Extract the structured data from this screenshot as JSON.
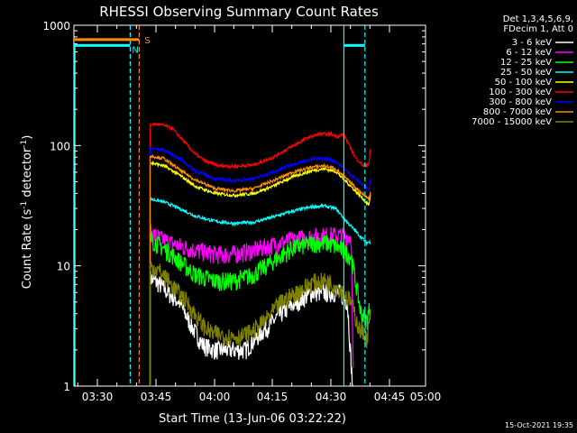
{
  "chart_data": {
    "type": "line",
    "title": "RHESSI Observing Summary Count Rates",
    "xlabel": "Start Time (13-Jun-06 03:22:22)",
    "ylabel_main": "Count Rate (s",
    "ylabel_sup1": "-1",
    "ylabel_mid": " detector",
    "ylabel_sup2": "-1",
    "ylabel_end": ")",
    "footer": "15-Oct-2021 19:35",
    "y_scale": "log",
    "ylim": [
      1,
      1000
    ],
    "xlim_minutes": [
      22.37,
      98.5
    ],
    "x_ticks": [
      {
        "label": "03:30",
        "m": 30
      },
      {
        "label": "03:45",
        "m": 45
      },
      {
        "label": "04:00",
        "m": 60
      },
      {
        "label": "04:15",
        "m": 75
      },
      {
        "label": "04:30",
        "m": 90
      },
      {
        "label": "04:45",
        "m": 105
      },
      {
        "label": "05:00",
        "m": 120
      }
    ],
    "y_tick_labels": [
      {
        "label": "1",
        "v": 1
      },
      {
        "label": "10",
        "v": 10
      },
      {
        "label": "100",
        "v": 100
      },
      {
        "label": "1000",
        "v": 1000
      }
    ],
    "legend_header": [
      "Det 1,3,4,5,6,9,",
      "FDecim 1, Att 0"
    ],
    "flags": {
      "S_label": "S",
      "N_label": "N"
    },
    "series": [
      {
        "name": "3 - 6 keV",
        "color": "#ffffff",
        "points": [
          [
            43.5,
            8
          ],
          [
            46,
            7
          ],
          [
            48,
            6
          ],
          [
            51,
            5
          ],
          [
            54,
            3.2
          ],
          [
            57,
            2.2
          ],
          [
            60,
            2
          ],
          [
            64,
            2
          ],
          [
            68,
            2
          ],
          [
            70,
            2.4
          ],
          [
            73,
            3
          ],
          [
            77,
            4
          ],
          [
            81,
            5
          ],
          [
            85,
            6
          ],
          [
            89,
            6
          ],
          [
            92,
            6
          ],
          [
            94,
            5
          ],
          [
            95.5,
            0.8
          ]
        ]
      },
      {
        "name": "6 - 12 keV",
        "color": "#ff00ff",
        "points": [
          [
            43.5,
            19
          ],
          [
            46,
            17
          ],
          [
            50,
            15
          ],
          [
            55,
            13.5
          ],
          [
            60,
            12.5
          ],
          [
            65,
            12.5
          ],
          [
            70,
            13.5
          ],
          [
            75,
            15
          ],
          [
            80,
            16.5
          ],
          [
            85,
            17.5
          ],
          [
            90,
            18
          ],
          [
            95,
            17.5
          ],
          [
            95.5,
            1
          ]
        ]
      },
      {
        "name": "12 - 25 keV",
        "color": "#00ff00",
        "points": [
          [
            43.5,
            17
          ],
          [
            47,
            14
          ],
          [
            51,
            11
          ],
          [
            55,
            8.5
          ],
          [
            60,
            7.5
          ],
          [
            65,
            7.5
          ],
          [
            70,
            8.5
          ],
          [
            75,
            11
          ],
          [
            80,
            14
          ],
          [
            85,
            15.5
          ],
          [
            89,
            15.5
          ],
          [
            92,
            14
          ],
          [
            95,
            12
          ],
          [
            97.5,
            4
          ],
          [
            99,
            3.5
          ],
          [
            100,
            5
          ]
        ]
      },
      {
        "name": "25 - 50 keV",
        "color": "#00ffff",
        "points": [
          [
            43.5,
            36
          ],
          [
            47,
            34
          ],
          [
            51,
            30
          ],
          [
            55,
            26
          ],
          [
            60,
            23.5
          ],
          [
            65,
            22.5
          ],
          [
            70,
            23
          ],
          [
            75,
            25.5
          ],
          [
            80,
            28.5
          ],
          [
            85,
            31
          ],
          [
            88,
            31.5
          ],
          [
            91,
            30
          ],
          [
            94,
            23
          ],
          [
            97,
            18
          ],
          [
            99,
            15.5
          ],
          [
            100,
            16
          ]
        ]
      },
      {
        "name": "50 - 100 keV",
        "color": "#ffff00",
        "points": [
          [
            43.5,
            72
          ],
          [
            47,
            68
          ],
          [
            51,
            57
          ],
          [
            55,
            46
          ],
          [
            60,
            40
          ],
          [
            65,
            38.5
          ],
          [
            70,
            40
          ],
          [
            75,
            46
          ],
          [
            80,
            55
          ],
          [
            85,
            62
          ],
          [
            88,
            64
          ],
          [
            91,
            61
          ],
          [
            94,
            49
          ],
          [
            97,
            39
          ],
          [
            99.5,
            32
          ],
          [
            100,
            40
          ]
        ]
      },
      {
        "name": "100 - 300 keV",
        "color": "#ff0000",
        "points": [
          [
            43.5,
            150
          ],
          [
            46,
            150
          ],
          [
            49,
            140
          ],
          [
            52,
            110
          ],
          [
            55,
            85
          ],
          [
            58,
            73
          ],
          [
            61,
            68
          ],
          [
            65,
            67
          ],
          [
            70,
            69
          ],
          [
            75,
            80
          ],
          [
            80,
            99
          ],
          [
            84,
            117
          ],
          [
            87,
            125
          ],
          [
            90,
            124
          ],
          [
            91.5,
            118
          ],
          [
            93,
            125
          ],
          [
            94.5,
            100
          ],
          [
            96,
            80
          ],
          [
            98,
            68
          ],
          [
            99.5,
            70
          ],
          [
            100,
            100
          ]
        ]
      },
      {
        "name": "300 - 800 keV",
        "color": "#0000ff",
        "points": [
          [
            43.5,
            95
          ],
          [
            47,
            92
          ],
          [
            51,
            78
          ],
          [
            55,
            62
          ],
          [
            60,
            53
          ],
          [
            65,
            51
          ],
          [
            70,
            53
          ],
          [
            75,
            60
          ],
          [
            80,
            70
          ],
          [
            85,
            77
          ],
          [
            88,
            78
          ],
          [
            91,
            74
          ],
          [
            94,
            61
          ],
          [
            97,
            50
          ],
          [
            99.5,
            43
          ],
          [
            100,
            55
          ]
        ]
      },
      {
        "name": "800 - 7000 keV",
        "color": "#ff8c00",
        "points": [
          [
            43.5,
            82
          ],
          [
            47,
            78
          ],
          [
            51,
            63
          ],
          [
            55,
            52
          ],
          [
            60,
            44
          ],
          [
            65,
            42
          ],
          [
            70,
            44
          ],
          [
            75,
            51
          ],
          [
            80,
            60
          ],
          [
            85,
            66
          ],
          [
            88,
            68
          ],
          [
            91,
            64
          ],
          [
            94,
            52
          ],
          [
            97,
            42
          ],
          [
            99.5,
            36
          ],
          [
            100,
            42
          ]
        ]
      },
      {
        "name": "7000 - 15000 keV",
        "color": "#808000",
        "points": [
          [
            43.5,
            10
          ],
          [
            46,
            9
          ],
          [
            49,
            7
          ],
          [
            53,
            5
          ],
          [
            56,
            3.5
          ],
          [
            59,
            2.8
          ],
          [
            63,
            2.6
          ],
          [
            67,
            2.6
          ],
          [
            70,
            2.9
          ],
          [
            73,
            3.5
          ],
          [
            77,
            5
          ],
          [
            81,
            6
          ],
          [
            85,
            7.3
          ],
          [
            89,
            7.5
          ],
          [
            92,
            6.5
          ],
          [
            95,
            5
          ],
          [
            97,
            3
          ],
          [
            99,
            2.5
          ],
          [
            100,
            4
          ]
        ]
      }
    ],
    "flag_bars": [
      {
        "name": "S",
        "color": "#ff8c00",
        "y_value": 760,
        "x_start": 22.37,
        "x_end": 40.7
      },
      {
        "name": "N",
        "color": "#00ffff",
        "y_value": 680,
        "x_start": 22.37,
        "x_end": 38.4
      },
      {
        "name": "N",
        "color": "#00ffff",
        "y_value": 680,
        "x_start": 93.1,
        "x_end": 98.5
      }
    ],
    "vlines": [
      {
        "m": 38.4,
        "color": "#00ffff",
        "style": "dashed"
      },
      {
        "m": 40.7,
        "color": "#ff8c00",
        "style": "dashed"
      },
      {
        "m": 93.1,
        "color": "#00ffff",
        "style": "solid"
      },
      {
        "m": 98.5,
        "color": "#00ffff",
        "style": "dashed"
      }
    ]
  }
}
